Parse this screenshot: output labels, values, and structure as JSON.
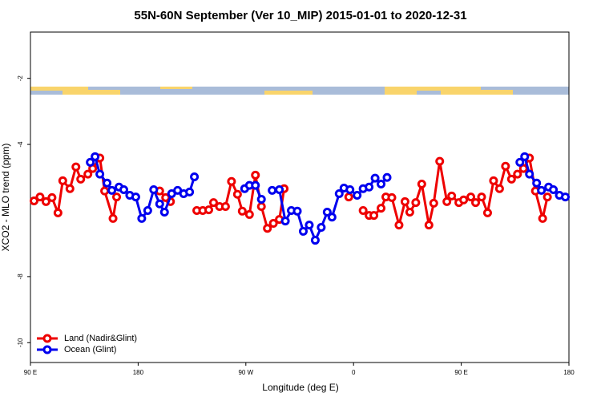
{
  "chart_data": {
    "type": "line",
    "title": "55N-60N September (Ver 10_MIP)   2015-01-01 to 2020-12-31",
    "x_label": "Longitude (deg E)",
    "y_label": "XCO2 - MLO trend (ppm)",
    "xlim": [
      90,
      540
    ],
    "xticks": [
      {
        "value": 90,
        "label": "90 E"
      },
      180,
      {
        "value": 270,
        "label": "90 W"
      },
      {
        "value": 360,
        "label": "0"
      },
      {
        "value": 450,
        "label": "90 E"
      },
      {
        "value": 540,
        "label": "180"
      }
    ],
    "ylim": [
      -10.6,
      -0.6
    ],
    "yticks": [
      -10,
      -8,
      -4,
      -2
    ],
    "legend": "bottom-left",
    "series": [
      {
        "name": "Land (Nadir&Glint)",
        "color": "#ee0000",
        "x": [
          93,
          98,
          103,
          108,
          113,
          117,
          123,
          128,
          132,
          138,
          142,
          148,
          152,
          159,
          162,
          null,
          198,
          203,
          207,
          null,
          229,
          234,
          239,
          243,
          248,
          253,
          258,
          263,
          267,
          273,
          278,
          283,
          288,
          293,
          298,
          302,
          null,
          356,
          null,
          368,
          373,
          377,
          383,
          387,
          392,
          398,
          403,
          407,
          412,
          417,
          423,
          427,
          432,
          438,
          442,
          448,
          452,
          458,
          462,
          467,
          472,
          477,
          482,
          487,
          492,
          497,
          502,
          507,
          512,
          518,
          522
        ],
        "values": [
          -5.71,
          -5.59,
          -5.73,
          -5.61,
          -6.07,
          -5.1,
          -5.34,
          -4.68,
          -5.05,
          -4.9,
          -4.73,
          -4.41,
          -5.41,
          -6.24,
          -5.59,
          null,
          -5.41,
          -5.61,
          -5.73,
          null,
          -6.0,
          -6.0,
          -5.98,
          -5.76,
          -5.88,
          -5.88,
          -5.12,
          -5.51,
          -6.02,
          -6.12,
          -4.93,
          -5.88,
          -6.54,
          -6.39,
          -6.27,
          -5.34,
          null,
          -5.59,
          null,
          -6.0,
          -6.15,
          -6.15,
          -5.93,
          -5.59,
          -5.61,
          -6.44,
          -5.73,
          -6.05,
          -5.76,
          -5.2,
          -6.44,
          -5.78,
          -4.51,
          -5.73,
          -5.56,
          -5.76,
          -5.68,
          -5.59,
          -5.76,
          -5.59,
          -6.07,
          -5.1,
          -5.34,
          -4.66,
          -5.05,
          -4.9,
          -4.73,
          -4.41,
          -5.41,
          -6.24,
          -5.59
        ]
      },
      {
        "name": "Ocean (Glint)",
        "color": "#0000ee",
        "x": [
          140,
          144,
          148,
          154,
          158,
          164,
          168,
          173,
          178,
          183,
          188,
          193,
          198,
          202,
          208,
          213,
          218,
          223,
          227,
          null,
          269,
          273,
          278,
          283,
          null,
          292,
          298,
          303,
          308,
          313,
          318,
          323,
          328,
          333,
          338,
          342,
          348,
          352,
          357,
          363,
          368,
          373,
          378,
          383,
          388,
          null,
          499,
          503,
          507,
          513,
          517,
          523,
          527,
          532,
          537
        ],
        "values": [
          -4.54,
          -4.37,
          -4.9,
          -5.17,
          -5.39,
          -5.29,
          -5.37,
          -5.54,
          -5.59,
          -6.24,
          -6.0,
          -5.37,
          -5.8,
          -6.05,
          -5.49,
          -5.39,
          -5.49,
          -5.44,
          -4.98,
          null,
          -5.34,
          -5.24,
          -5.24,
          -5.66,
          null,
          -5.39,
          -5.37,
          -6.32,
          -6.0,
          -6.02,
          -6.63,
          -6.44,
          -6.9,
          -6.51,
          -6.05,
          -6.2,
          -5.49,
          -5.32,
          -5.37,
          -5.54,
          -5.34,
          -5.29,
          -5.02,
          -5.2,
          -5.0,
          null,
          -4.54,
          -4.37,
          -4.9,
          -5.17,
          -5.39,
          -5.29,
          -5.37,
          -5.54,
          -5.59
        ]
      }
    ]
  }
}
